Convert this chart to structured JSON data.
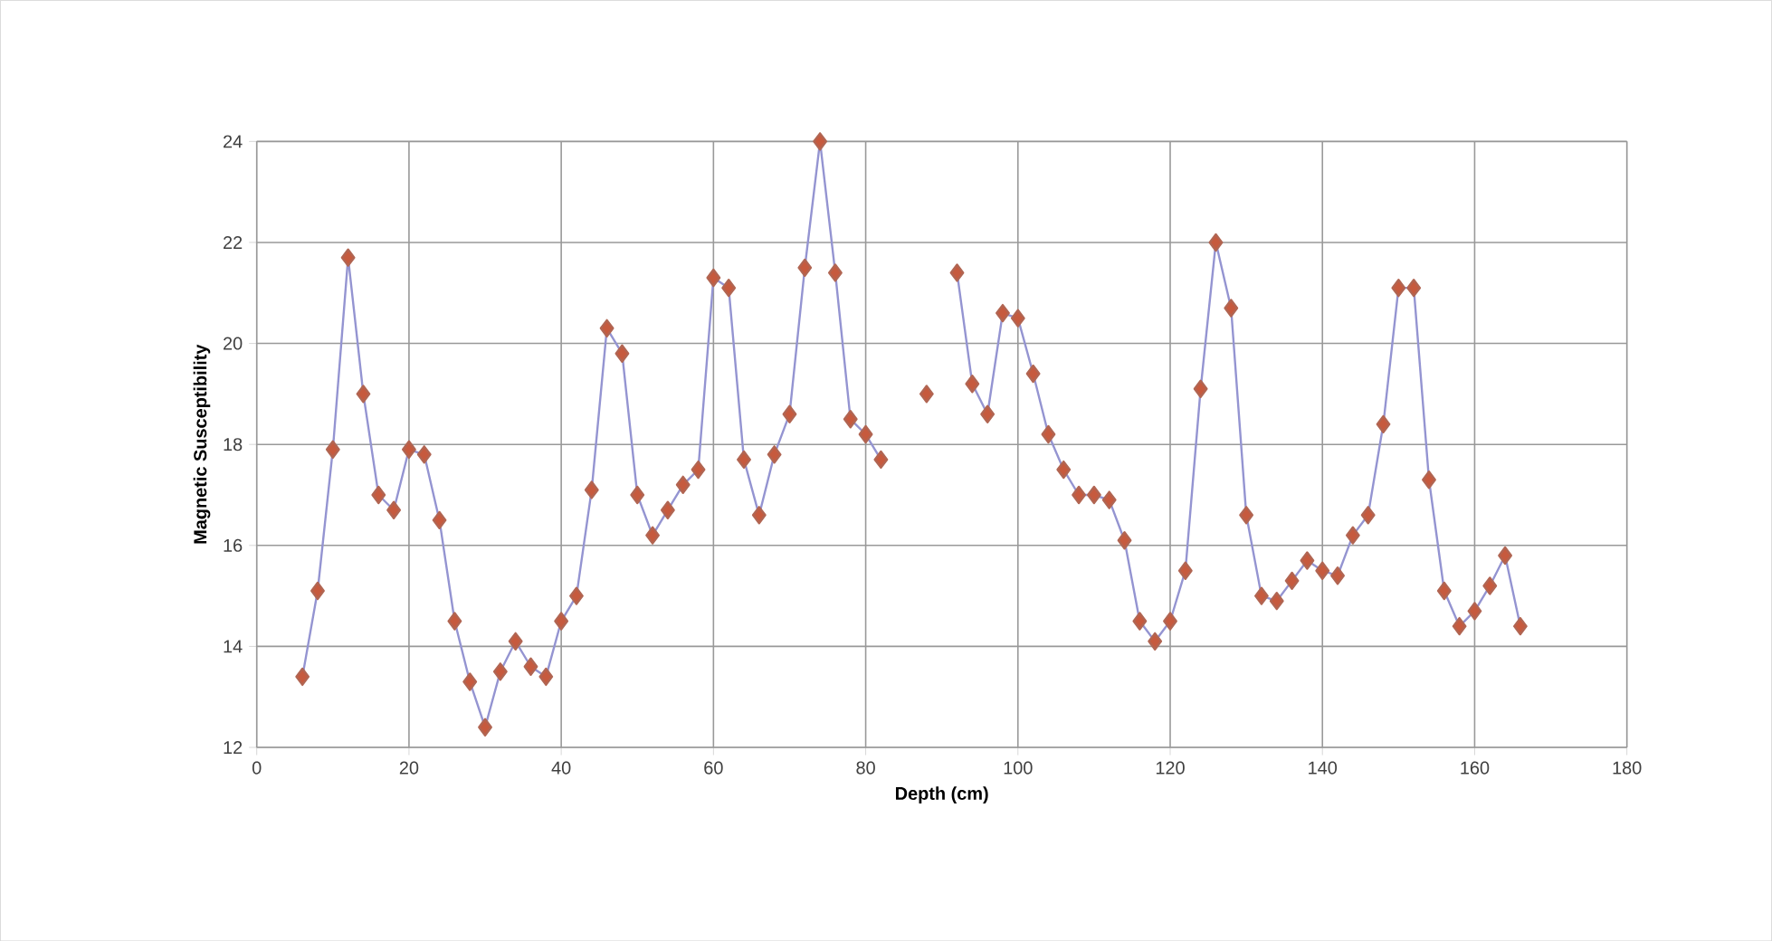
{
  "chart_data": {
    "type": "line",
    "xlabel": "Depth (cm)",
    "ylabel": "Magnetic Susceptibility",
    "x": [
      6,
      8,
      10,
      12,
      14,
      16,
      18,
      20,
      22,
      24,
      26,
      28,
      30,
      32,
      34,
      36,
      38,
      40,
      42,
      44,
      46,
      48,
      50,
      52,
      54,
      56,
      58,
      60,
      62,
      64,
      66,
      68,
      70,
      72,
      74,
      76,
      78,
      80,
      82,
      84,
      86,
      88,
      90,
      92,
      94,
      96,
      98,
      100,
      102,
      104,
      106,
      108,
      110,
      112,
      114,
      116,
      118,
      120,
      122,
      124,
      126,
      128,
      130,
      132,
      134,
      136,
      138,
      140,
      142,
      144,
      146,
      148,
      150,
      152,
      154,
      156,
      158,
      160,
      162,
      164,
      166
    ],
    "series": [
      {
        "color": "#c65a3e",
        "values": [
          13.4,
          15.1,
          17.9,
          21.7,
          19.0,
          17.0,
          16.7,
          17.9,
          17.8,
          16.5,
          14.5,
          13.3,
          12.4,
          13.5,
          14.1,
          13.6,
          13.4,
          14.5,
          15.0,
          17.1,
          20.3,
          19.8,
          17.0,
          16.2,
          16.7,
          17.2,
          17.5,
          21.3,
          21.1,
          17.7,
          16.6,
          17.8,
          18.6,
          21.5,
          24.0,
          21.4,
          18.5,
          18.2,
          17.7,
          null,
          null,
          19.0,
          null,
          21.4,
          19.2,
          18.6,
          20.6,
          20.5,
          19.4,
          18.2,
          17.5,
          17.0,
          17.0,
          16.9,
          16.1,
          14.5,
          14.1,
          14.5,
          15.5,
          19.1,
          22.0,
          20.7,
          16.6,
          15.0,
          14.9,
          15.3,
          15.7,
          15.5,
          15.4,
          16.2,
          16.6,
          18.4,
          21.1,
          21.1,
          17.3,
          15.1,
          14.4,
          14.7,
          15.2,
          15.8,
          14.4
        ]
      }
    ],
    "xlim": [
      0,
      180
    ],
    "xticks": [
      0,
      20,
      40,
      60,
      80,
      100,
      120,
      140,
      160,
      180
    ],
    "ylim": [
      12,
      24
    ],
    "yticks": [
      12,
      14,
      16,
      18,
      20,
      22,
      24
    ],
    "grid": true,
    "marker": "diamond",
    "line_style": "solid"
  }
}
